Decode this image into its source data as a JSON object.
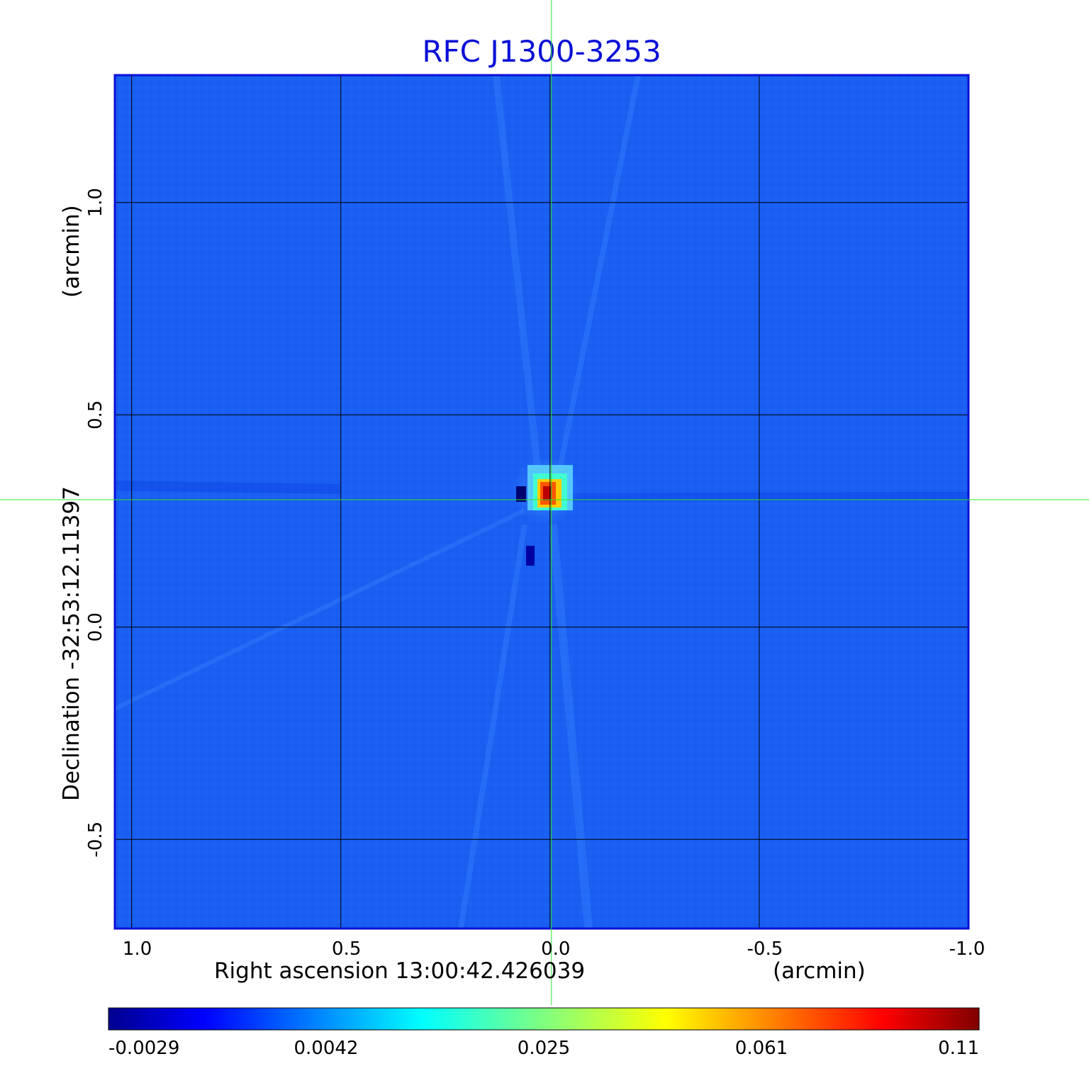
{
  "chart_data": {
    "type": "heatmap",
    "title": "RFC J1300-3253",
    "xlabel": "Right ascension  13:00:42.426039",
    "xunit": "(arcmin)",
    "ylabel": "Declination  -32:53:12.11397",
    "yunit": "(arcmin)",
    "x_ticks": [
      "1.0",
      "0.5",
      "0.0",
      "-0.5",
      "-1.0"
    ],
    "y_ticks": [
      "1.0",
      "0.5",
      "0.0",
      "-0.5"
    ],
    "x_tick_values": [
      1.0,
      0.5,
      0.0,
      -0.5,
      -1.0
    ],
    "y_tick_values": [
      1.0,
      0.5,
      0.0,
      -0.5
    ],
    "xlim": [
      1.04,
      -1.0
    ],
    "ylim": [
      -0.71,
      1.3
    ],
    "colormap": "jet",
    "colorbar_ticks": [
      "-0.0029",
      "0.0042",
      "0.025",
      "0.061",
      "0.11"
    ],
    "colorbar_range": [
      -0.0029,
      0.11
    ],
    "grid": true,
    "source": {
      "ra_offset": -0.002,
      "dec_offset": 0.31,
      "peak": 0.11
    },
    "crosshair": {
      "ra_offset": 0.0,
      "dec_offset": 0.3
    },
    "colors": {
      "title": "#0a10d6",
      "frame": "#0a10d6",
      "crosshair": "#2ee62e",
      "grid": "#000000",
      "background_field": "#1a5ef2"
    }
  }
}
